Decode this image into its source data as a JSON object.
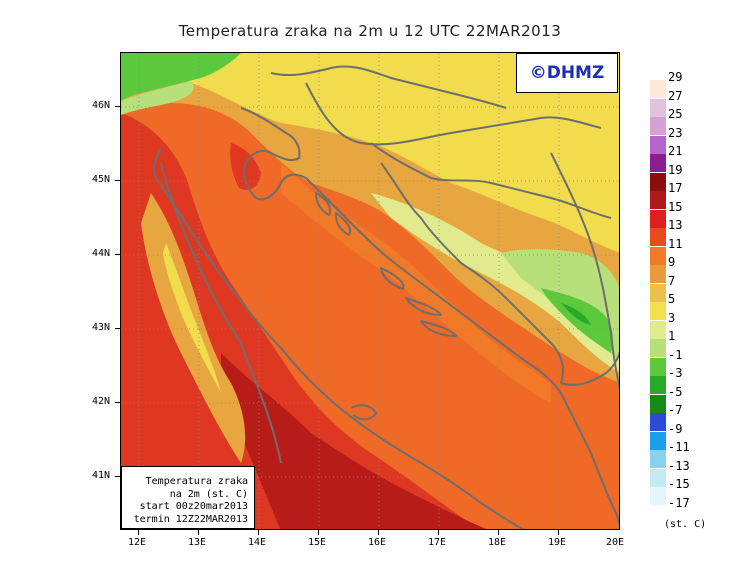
{
  "title": "Temperatura zraka na 2m u 12 UTC 22MAR2013",
  "logo": "©DHMZ",
  "info_box": {
    "line1": "Temperatura zraka",
    "line2": "na 2m (st. C)",
    "line3": "start 00z20mar2013",
    "line4": "termin 12Z22MAR2013"
  },
  "lat_labels": [
    "46N",
    "45N",
    "44N",
    "43N",
    "42N",
    "41N"
  ],
  "lon_labels": [
    "12E",
    "13E",
    "14E",
    "15E",
    "16E",
    "17E",
    "18E",
    "19E",
    "20E"
  ],
  "legend": {
    "unit": "(st. C)",
    "labels": [
      "29",
      "27",
      "25",
      "23",
      "21",
      "19",
      "17",
      "15",
      "13",
      "11",
      "9",
      "7",
      "5",
      "3",
      "1",
      "-1",
      "-3",
      "-5",
      "-7",
      "-9",
      "-11",
      "-13",
      "-15",
      "-17"
    ],
    "colors": [
      "#fce9d9",
      "#e2c3dc",
      "#d6a2d6",
      "#b864c8",
      "#8a1e8f",
      "#8a1010",
      "#b01818",
      "#dc2020",
      "#ea4b1e",
      "#f07a28",
      "#e89a3c",
      "#ecc04c",
      "#f2e04e",
      "#e2ea8e",
      "#b8e07a",
      "#5cc83c",
      "#28aa28",
      "#168a16",
      "#2c4cd8",
      "#1aa0e8",
      "#8ad2ec",
      "#c4eaf4",
      "#e4f6fa"
    ]
  },
  "colors": {
    "sea": "#ef6a26",
    "coast_warm": "#de3822",
    "inland": "#e8a640",
    "cold": "#f0dc4c",
    "snow": "#6cc64a",
    "border": "#6e6e6e",
    "logo": "#1d2fb0"
  }
}
